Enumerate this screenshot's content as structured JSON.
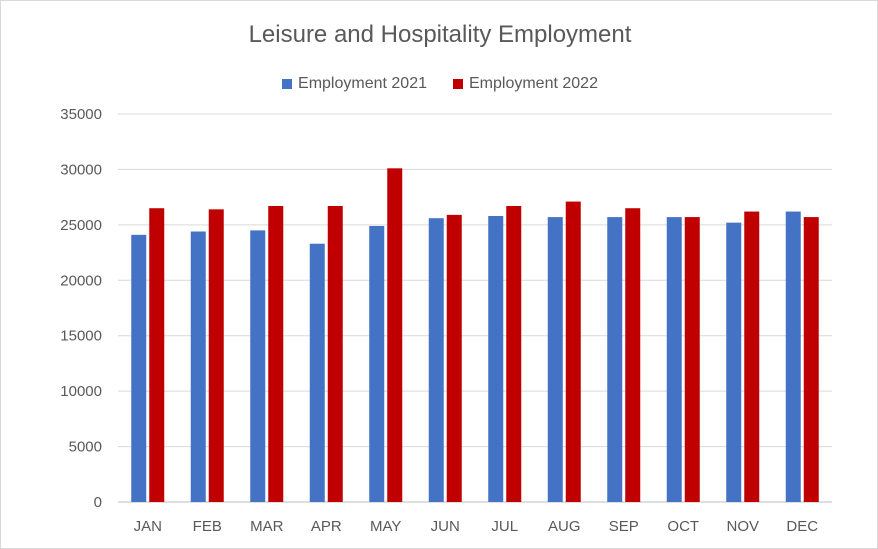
{
  "chart_data": {
    "type": "bar",
    "title": "Leisure and Hospitality Employment",
    "categories": [
      "JAN",
      "FEB",
      "MAR",
      "APR",
      "MAY",
      "JUN",
      "JUL",
      "AUG",
      "SEP",
      "OCT",
      "NOV",
      "DEC"
    ],
    "series": [
      {
        "name": "Employment 2021",
        "color": "#4472c4",
        "values": [
          24100,
          24400,
          24500,
          23300,
          24900,
          25600,
          25800,
          25700,
          25700,
          25700,
          25200,
          26200
        ]
      },
      {
        "name": "Employment 2022",
        "color": "#c00000",
        "values": [
          26500,
          26400,
          26700,
          26700,
          30100,
          25900,
          26700,
          27100,
          26500,
          25700,
          26200,
          25700
        ]
      }
    ],
    "ylim": [
      0,
      35000
    ],
    "yticks": [
      0,
      5000,
      10000,
      15000,
      20000,
      25000,
      30000,
      35000
    ],
    "grid": true,
    "legend_position": "top"
  }
}
